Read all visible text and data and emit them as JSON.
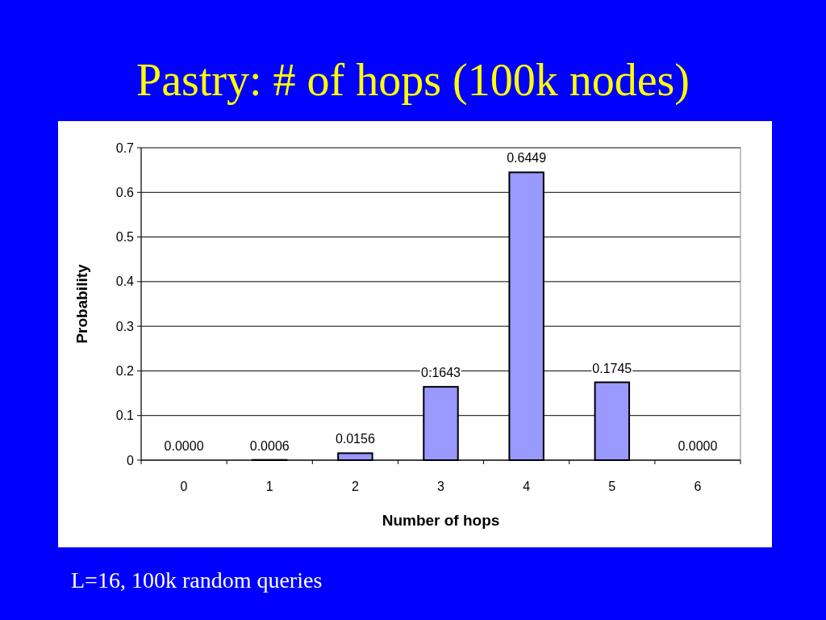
{
  "chart_data": {
    "type": "bar",
    "title": "Pastry: # of hops (100k nodes)",
    "xlabel": "Number of hops",
    "ylabel": "Probability",
    "categories": [
      "0",
      "1",
      "2",
      "3",
      "4",
      "5",
      "6"
    ],
    "values": [
      0,
      0.0006,
      0.0156,
      0.1643,
      0.6449,
      0.1745,
      0
    ],
    "value_labels": [
      "0.0000",
      "0.0006",
      "0.0156",
      "0.1643",
      "0.6449",
      "0.1745",
      "0.0000"
    ],
    "color": "#9999ff",
    "ylim": [
      0,
      0.7
    ],
    "yticks": [
      0,
      0.1,
      0.2,
      0.3,
      0.4,
      0.5,
      0.6,
      0.7
    ],
    "grid": "y",
    "annotations": [
      "L=16, 100k random queries"
    ]
  }
}
